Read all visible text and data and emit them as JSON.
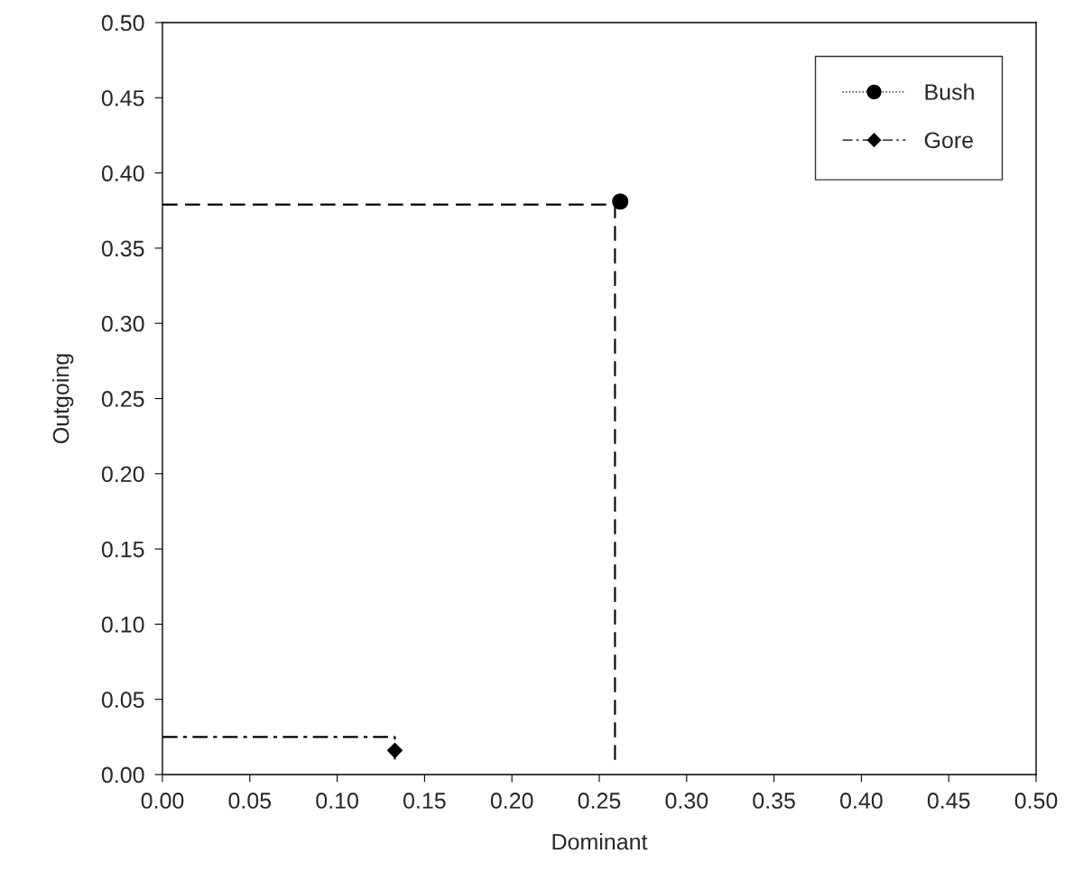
{
  "chart_data": {
    "type": "scatter",
    "xlabel": "Dominant",
    "ylabel": "Outgoing",
    "xlim": [
      0,
      0.5
    ],
    "ylim": [
      0,
      0.5
    ],
    "xticks": [
      {
        "value": 0,
        "label": "0.00"
      },
      {
        "value": 0.05,
        "label": "0.05"
      },
      {
        "value": 0.1,
        "label": "0.10"
      },
      {
        "value": 0.15,
        "label": "0.15"
      },
      {
        "value": 0.2,
        "label": "0.20"
      },
      {
        "value": 0.25,
        "label": "0.25"
      },
      {
        "value": 0.3,
        "label": "0.30"
      },
      {
        "value": 0.35,
        "label": "0.35"
      },
      {
        "value": 0.4,
        "label": "0.40"
      },
      {
        "value": 0.45,
        "label": "0.45"
      },
      {
        "value": 0.5,
        "label": "0.50"
      }
    ],
    "yticks": [
      {
        "value": 0,
        "label": "0.00"
      },
      {
        "value": 0.05,
        "label": "0.05"
      },
      {
        "value": 0.1,
        "label": "0.10"
      },
      {
        "value": 0.15,
        "label": "0.15"
      },
      {
        "value": 0.2,
        "label": "0.20"
      },
      {
        "value": 0.25,
        "label": "0.25"
      },
      {
        "value": 0.3,
        "label": "0.30"
      },
      {
        "value": 0.35,
        "label": "0.35"
      },
      {
        "value": 0.4,
        "label": "0.40"
      },
      {
        "value": 0.45,
        "label": "0.45"
      },
      {
        "value": 0.5,
        "label": "0.50"
      }
    ],
    "grid": false,
    "legend": "top right",
    "series": [
      {
        "name": "Bush",
        "color": "#000000",
        "marker": "circle",
        "line_style": "dotted",
        "x": [
          0.262
        ],
        "values": [
          0.381
        ]
      },
      {
        "name": "Gore",
        "color": "#000000",
        "marker": "diamond",
        "line_style": "dashdot",
        "x": [
          0.133
        ],
        "values": [
          0.016
        ]
      },
      {
        "type": "line",
        "color": "#000000",
        "line_style": "dashed",
        "x": [
          0,
          0.259,
          0.259
        ],
        "values": [
          0.379,
          0.379,
          0.009
        ]
      },
      {
        "type": "line",
        "color": "#000000",
        "line_style": "dashdot",
        "x": [
          0,
          0.133,
          0.133
        ],
        "values": [
          0.025,
          0.025,
          0.01
        ]
      }
    ]
  }
}
